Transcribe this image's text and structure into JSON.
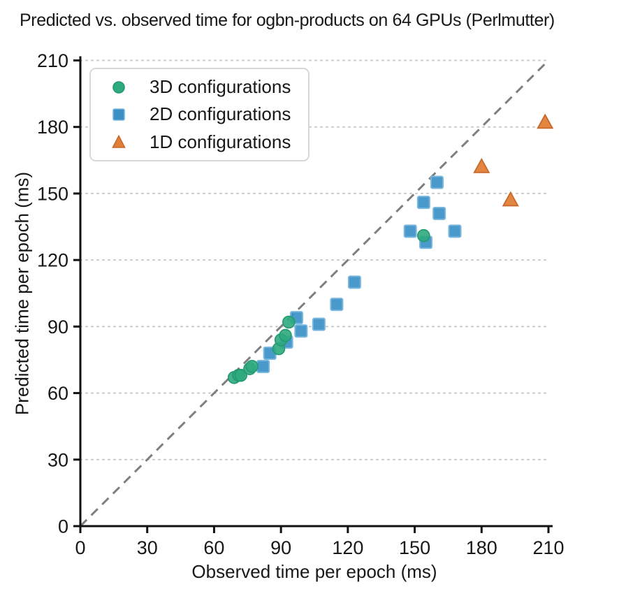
{
  "chart_data": {
    "type": "scatter",
    "title": "Predicted vs. observed time for ogbn-products on 64 GPUs (Perlmutter)",
    "xlabel": "Observed time per epoch (ms)",
    "ylabel": "Predicted time per epoch (ms)",
    "xlim": [
      0,
      210
    ],
    "ylim": [
      0,
      210
    ],
    "xticks": [
      0,
      30,
      60,
      90,
      120,
      150,
      180,
      210
    ],
    "yticks": [
      0,
      30,
      60,
      90,
      120,
      150,
      180,
      210
    ],
    "grid": "horizontal-dotted",
    "legend_position": "upper-left",
    "reference_line": {
      "kind": "y=x",
      "style": "dashed",
      "color": "#7f7f7f"
    },
    "colors": {
      "grid": "#c7c7c7",
      "axis": "#111111",
      "text": "#181818",
      "legend_border": "#d8d8d8"
    },
    "series": [
      {
        "name": "3D configurations",
        "marker": "circle",
        "color": "#2faa7e",
        "edge_color": "#23996f",
        "points": [
          [
            69,
            67
          ],
          [
            71,
            68
          ],
          [
            72,
            68
          ],
          [
            76,
            71
          ],
          [
            77,
            72
          ],
          [
            89,
            80
          ],
          [
            90,
            84
          ],
          [
            92,
            86
          ],
          [
            93.5,
            92
          ],
          [
            154,
            131
          ]
        ]
      },
      {
        "name": "2D configurations",
        "marker": "square",
        "color": "#3a90c5",
        "edge_color": "#79b7de",
        "points": [
          [
            82,
            72
          ],
          [
            85,
            78
          ],
          [
            92.5,
            83
          ],
          [
            97,
            94
          ],
          [
            99,
            88
          ],
          [
            107,
            91
          ],
          [
            115,
            100
          ],
          [
            123,
            110
          ],
          [
            148,
            133
          ],
          [
            155,
            128
          ],
          [
            154,
            146
          ],
          [
            160,
            155
          ],
          [
            161,
            141
          ],
          [
            168,
            133
          ]
        ]
      },
      {
        "name": "1D configurations",
        "marker": "triangle",
        "color": "#e08038",
        "edge_color": "#c9682a",
        "points": [
          [
            180,
            162
          ],
          [
            193,
            147
          ],
          [
            208.5,
            182
          ]
        ]
      }
    ]
  }
}
